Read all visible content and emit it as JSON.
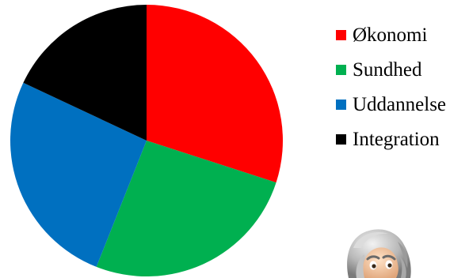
{
  "chart_data": {
    "type": "pie",
    "title": "",
    "legend_position": "right",
    "slices": [
      {
        "label": "Økonomi",
        "value": 30,
        "color": "#ff0000"
      },
      {
        "label": "Sundhed",
        "value": 26,
        "color": "#00b050"
      },
      {
        "label": "Uddannelse",
        "value": 26,
        "color": "#0070c0"
      },
      {
        "label": "Integration",
        "value": 18,
        "color": "#000000"
      }
    ]
  },
  "decoration": {
    "mascot": "grey-haired-cartoon-character-head"
  }
}
